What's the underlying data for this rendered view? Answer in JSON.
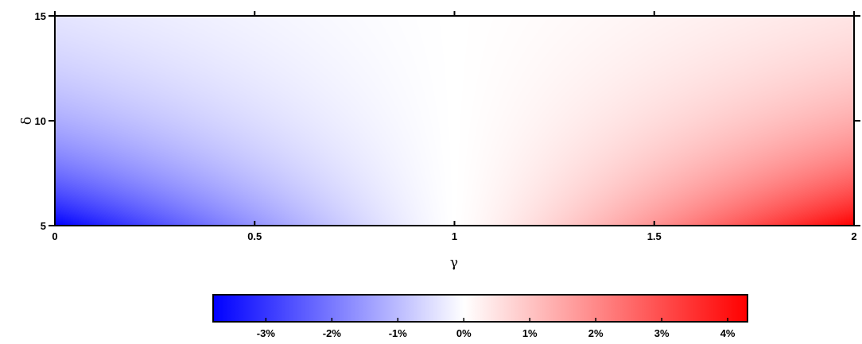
{
  "chart_data": {
    "type": "heatmap",
    "xlabel": "γ",
    "ylabel": "δ",
    "xlim": [
      0,
      2
    ],
    "ylim": [
      5,
      15
    ],
    "x_ticks": [
      "0",
      "0.5",
      "1",
      "1.5",
      "2"
    ],
    "y_ticks": [
      "5",
      "10",
      "15"
    ],
    "value_range": [
      -3.8,
      4.3
    ],
    "value_unit": "%",
    "field": {
      "description_zero_at_x": 1,
      "min_corner": {
        "x": 0,
        "y": 5,
        "value": -3.8
      },
      "max_corner": {
        "x": 2,
        "y": 5,
        "value": 4.3
      },
      "top_edge": {
        "y": 15,
        "value_at_x0": -0.4,
        "value_at_x2": 0.45
      }
    },
    "colorbar": {
      "ticks": [
        "-3%",
        "-2%",
        "-1%",
        "0%",
        "1%",
        "2%",
        "3%",
        "4%"
      ],
      "tick_values": [
        -3,
        -2,
        -1,
        0,
        1,
        2,
        3,
        4
      ],
      "min_color": "#0000ff",
      "mid_color": "#ffffff",
      "max_color": "#ff0000"
    }
  }
}
